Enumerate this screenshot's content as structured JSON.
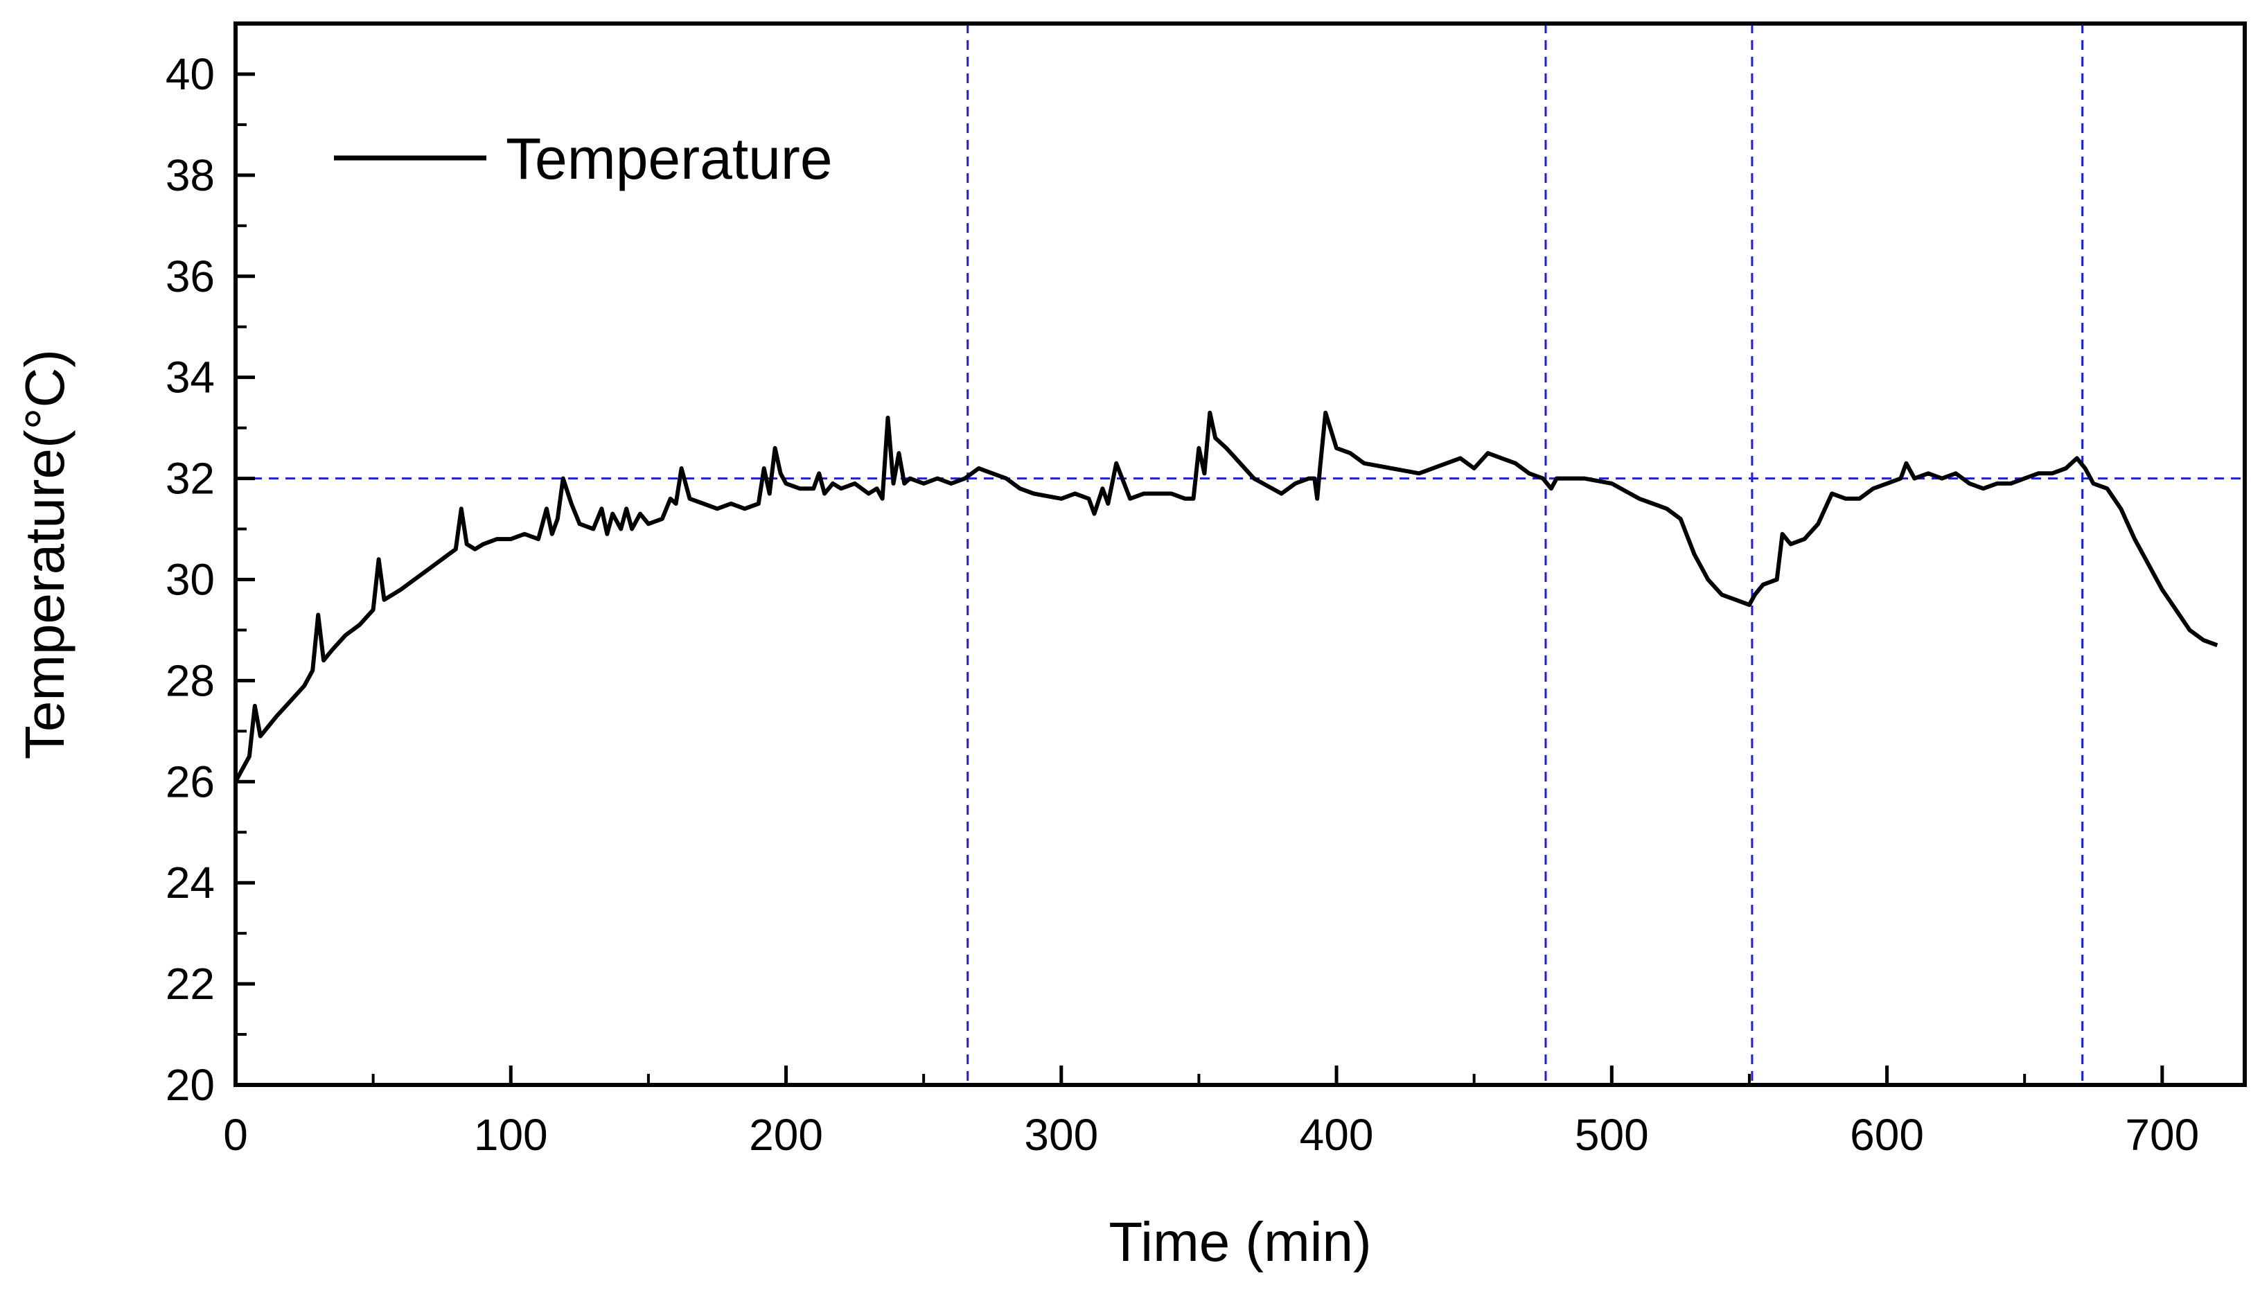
{
  "chart_data": {
    "type": "line",
    "title": "",
    "xlabel": "Time (min)",
    "ylabel": "Temperature(°C)",
    "xlim": [
      0,
      730
    ],
    "ylim": [
      20,
      41
    ],
    "x_ticks": [
      0,
      100,
      200,
      300,
      400,
      500,
      600,
      700
    ],
    "x_tick_labels": [
      "0",
      "100",
      "200",
      "300",
      "400",
      "500",
      "600",
      "700"
    ],
    "y_ticks": [
      20,
      22,
      24,
      26,
      28,
      30,
      32,
      34,
      36,
      38,
      40
    ],
    "y_tick_labels": [
      "20",
      "22",
      "24",
      "26",
      "28",
      "30",
      "32",
      "34",
      "36",
      "38",
      "40"
    ],
    "grid": false,
    "legend": {
      "position": "top-left",
      "entries": [
        "Temperature"
      ]
    },
    "reference_lines": {
      "horizontal_y": [
        32
      ],
      "vertical_x": [
        266,
        476,
        551,
        671
      ],
      "color": "#1a1aff",
      "style": "dashed"
    },
    "series": [
      {
        "name": "Temperature",
        "color": "#000000",
        "x": [
          0,
          2,
          5,
          7,
          9,
          12,
          15,
          20,
          25,
          28,
          30,
          32,
          35,
          40,
          45,
          50,
          52,
          54,
          57,
          60,
          65,
          70,
          75,
          80,
          82,
          84,
          87,
          90,
          95,
          100,
          105,
          110,
          113,
          115,
          117,
          119,
          122,
          125,
          130,
          133,
          135,
          137,
          140,
          142,
          144,
          147,
          150,
          155,
          158,
          160,
          162,
          165,
          170,
          175,
          180,
          185,
          190,
          192,
          194,
          196,
          198,
          200,
          205,
          210,
          212,
          214,
          217,
          220,
          225,
          230,
          233,
          235,
          237,
          239,
          241,
          243,
          245,
          250,
          255,
          260,
          265,
          270,
          275,
          280,
          285,
          290,
          300,
          305,
          310,
          312,
          315,
          317,
          320,
          325,
          330,
          340,
          345,
          348,
          350,
          352,
          354,
          356,
          360,
          365,
          370,
          380,
          385,
          390,
          392,
          393,
          394,
          396,
          400,
          405,
          410,
          420,
          430,
          440,
          445,
          450,
          455,
          460,
          465,
          470,
          475,
          478,
          480,
          490,
          500,
          510,
          515,
          520,
          525,
          530,
          535,
          540,
          545,
          550,
          552,
          555,
          560,
          562,
          565,
          570,
          575,
          580,
          585,
          590,
          595,
          600,
          605,
          607,
          610,
          615,
          620,
          625,
          630,
          635,
          640,
          645,
          650,
          655,
          660,
          665,
          669,
          672,
          675,
          680,
          685,
          690,
          695,
          700,
          705,
          710,
          715,
          720
        ],
        "values": [
          26.0,
          26.2,
          26.5,
          27.5,
          26.9,
          27.1,
          27.3,
          27.6,
          27.9,
          28.2,
          29.3,
          28.4,
          28.6,
          28.9,
          29.1,
          29.4,
          30.4,
          29.6,
          29.7,
          29.8,
          30.0,
          30.2,
          30.4,
          30.6,
          31.4,
          30.7,
          30.6,
          30.7,
          30.8,
          30.8,
          30.9,
          30.8,
          31.4,
          30.9,
          31.2,
          32.0,
          31.5,
          31.1,
          31.0,
          31.4,
          30.9,
          31.3,
          31.0,
          31.4,
          31.0,
          31.3,
          31.1,
          31.2,
          31.6,
          31.5,
          32.2,
          31.6,
          31.5,
          31.4,
          31.5,
          31.4,
          31.5,
          32.2,
          31.7,
          32.6,
          32.1,
          31.9,
          31.8,
          31.8,
          32.1,
          31.7,
          31.9,
          31.8,
          31.9,
          31.7,
          31.8,
          31.6,
          33.2,
          31.9,
          32.5,
          31.9,
          32.0,
          31.9,
          32.0,
          31.9,
          32.0,
          32.2,
          32.1,
          32.0,
          31.8,
          31.7,
          31.6,
          31.7,
          31.6,
          31.3,
          31.8,
          31.5,
          32.3,
          31.6,
          31.7,
          31.7,
          31.6,
          31.6,
          32.6,
          32.1,
          33.3,
          32.8,
          32.6,
          32.3,
          32.0,
          31.7,
          31.9,
          32.0,
          32.0,
          31.6,
          32.2,
          33.3,
          32.6,
          32.5,
          32.3,
          32.2,
          32.1,
          32.3,
          32.4,
          32.2,
          32.5,
          32.4,
          32.3,
          32.1,
          32.0,
          31.8,
          32.0,
          32.0,
          31.9,
          31.6,
          31.5,
          31.4,
          31.2,
          30.5,
          30.0,
          29.7,
          29.6,
          29.5,
          29.7,
          29.9,
          30.0,
          30.9,
          30.7,
          30.8,
          31.1,
          31.7,
          31.6,
          31.6,
          31.8,
          31.9,
          32.0,
          32.3,
          32.0,
          32.1,
          32.0,
          32.1,
          31.9,
          31.8,
          31.9,
          31.9,
          32.0,
          32.1,
          32.1,
          32.2,
          32.4,
          32.2,
          31.9,
          31.8,
          31.4,
          30.8,
          30.3,
          29.8,
          29.4,
          29.0,
          28.8,
          28.7
        ]
      }
    ]
  }
}
